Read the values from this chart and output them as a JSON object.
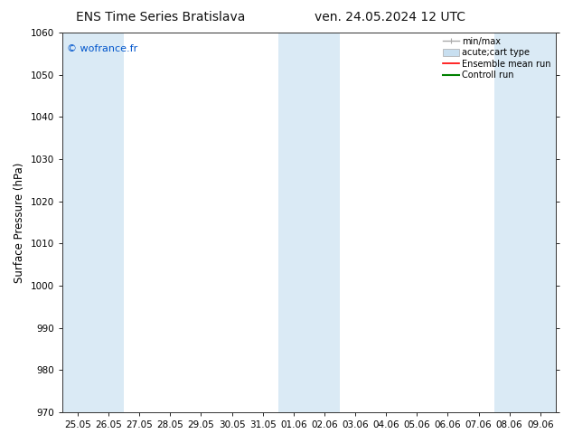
{
  "title_left": "ENS Time Series Bratislava",
  "title_right": "ven. 24.05.2024 12 UTC",
  "ylabel": "Surface Pressure (hPa)",
  "ylim": [
    970,
    1060
  ],
  "yticks": [
    970,
    980,
    990,
    1000,
    1010,
    1020,
    1030,
    1040,
    1050,
    1060
  ],
  "x_labels": [
    "25.05",
    "26.05",
    "27.05",
    "28.05",
    "29.05",
    "30.05",
    "31.05",
    "01.06",
    "02.06",
    "03.06",
    "04.06",
    "05.06",
    "06.06",
    "07.06",
    "08.06",
    "09.06"
  ],
  "shaded_columns": [
    0,
    1,
    7,
    8,
    14,
    15
  ],
  "shade_color": "#daeaf5",
  "background_color": "#ffffff",
  "copyright_text": "© wofrance.fr",
  "legend_entries": [
    "min/max",
    "acute;cart type",
    "Ensemble mean run",
    "Controll run"
  ],
  "legend_line_color": "#aaaaaa",
  "legend_rect_color": "#c8dff0",
  "legend_ens_color": "#ff0000",
  "legend_ctrl_color": "#008000",
  "title_fontsize": 10,
  "tick_fontsize": 7.5,
  "ylabel_fontsize": 8.5
}
